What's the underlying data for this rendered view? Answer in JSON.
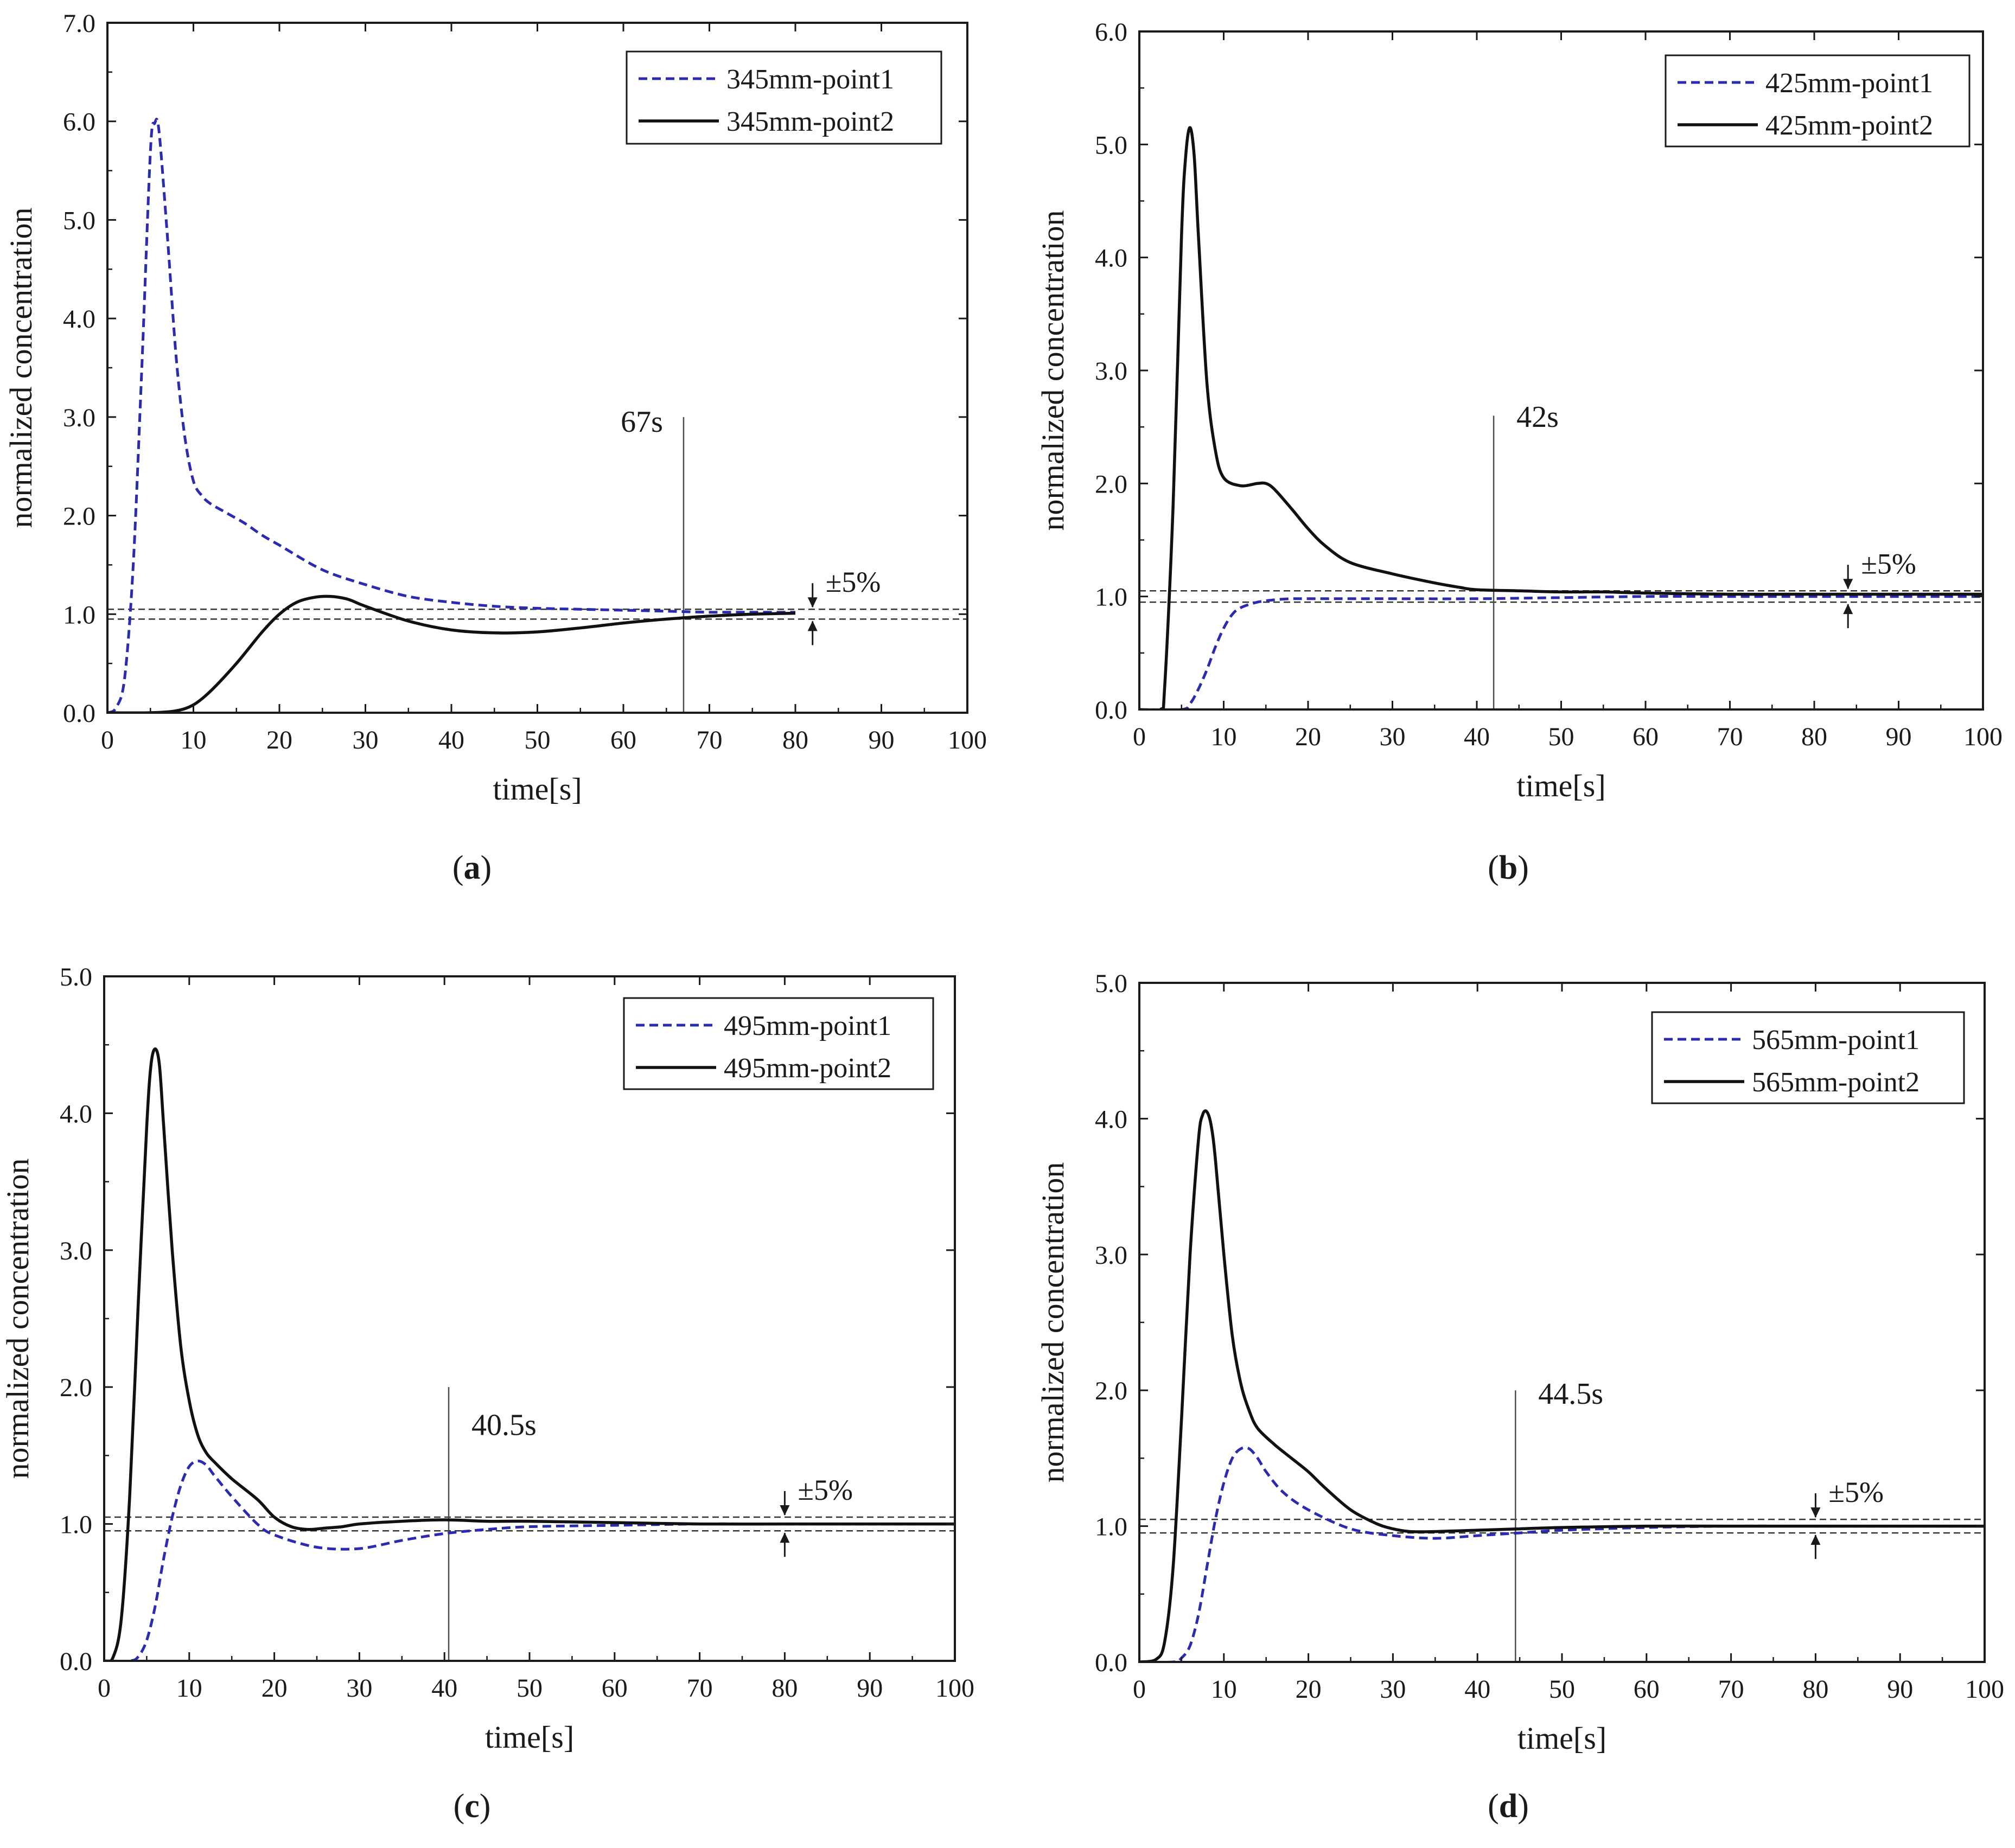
{
  "colors": {
    "series1": "#2b2bb0",
    "series2": "#111111",
    "axis": "#1a1a1a",
    "band": "#333333",
    "marker": "#4d4d4d"
  },
  "chart_data": [
    {
      "type": "line",
      "panel_label": "(a)",
      "panel_letter": "a",
      "xlabel": "time[s]",
      "ylabel": "normalized concentration",
      "xlim": [
        0,
        100
      ],
      "ylim": [
        0,
        7.0
      ],
      "xticks": [
        0,
        10,
        20,
        30,
        40,
        50,
        60,
        70,
        80,
        90,
        100
      ],
      "yticks": [
        0.0,
        1.0,
        2.0,
        3.0,
        4.0,
        5.0,
        6.0,
        7.0
      ],
      "ytick_labels": [
        "0.0",
        "1.0",
        "2.0",
        "3.0",
        "4.0",
        "5.0",
        "6.0",
        "7.0"
      ],
      "band": {
        "upper": 1.05,
        "lower": 0.95,
        "label": "±5%",
        "arrow_x": 82
      },
      "settling": {
        "x": 67,
        "label": "67s",
        "line_top": 3.0,
        "label_y": 2.85,
        "label_side": "left"
      },
      "series": [
        {
          "name": "345mm-point1",
          "style": "dashed",
          "x": [
            0,
            1,
            2,
            3,
            4,
            5,
            5.5,
            6,
            7,
            8,
            9,
            10,
            11,
            12,
            14,
            16,
            18,
            20,
            25,
            30,
            35,
            40,
            45,
            50,
            55,
            60,
            65,
            70,
            75,
            80
          ],
          "y": [
            0,
            0.05,
            0.35,
            1.5,
            3.5,
            5.7,
            5.98,
            5.9,
            4.8,
            3.6,
            2.8,
            2.35,
            2.2,
            2.12,
            2.02,
            1.92,
            1.8,
            1.7,
            1.45,
            1.3,
            1.18,
            1.12,
            1.08,
            1.06,
            1.05,
            1.04,
            1.03,
            1.02,
            1.02,
            1.02
          ]
        },
        {
          "name": "345mm-point2",
          "style": "solid",
          "x": [
            0,
            5,
            8,
            10,
            12,
            15,
            18,
            20,
            22,
            24,
            26,
            28,
            30,
            35,
            40,
            45,
            50,
            55,
            60,
            65,
            70,
            75,
            80
          ],
          "y": [
            0,
            0,
            0.02,
            0.08,
            0.22,
            0.5,
            0.82,
            1.0,
            1.12,
            1.17,
            1.18,
            1.15,
            1.08,
            0.93,
            0.84,
            0.81,
            0.82,
            0.86,
            0.91,
            0.95,
            0.98,
            1.0,
            1.01
          ]
        }
      ]
    },
    {
      "type": "line",
      "panel_label": "(b)",
      "panel_letter": "b",
      "xlabel": "time[s]",
      "ylabel": "normalized concentration",
      "xlim": [
        0,
        100
      ],
      "ylim": [
        0,
        6.0
      ],
      "xticks": [
        0,
        10,
        20,
        30,
        40,
        50,
        60,
        70,
        80,
        90,
        100
      ],
      "yticks": [
        0.0,
        1.0,
        2.0,
        3.0,
        4.0,
        5.0,
        6.0
      ],
      "ytick_labels": [
        "0.0",
        "1.0",
        "2.0",
        "3.0",
        "4.0",
        "5.0",
        "6.0"
      ],
      "band": {
        "upper": 1.05,
        "lower": 0.95,
        "label": "±5%",
        "arrow_x": 84
      },
      "settling": {
        "x": 42,
        "label": "42s",
        "line_top": 2.6,
        "label_y": 2.5,
        "label_side": "right"
      },
      "series": [
        {
          "name": "425mm-point1",
          "style": "dashed",
          "x": [
            0,
            5,
            6,
            7,
            8,
            9,
            10,
            11,
            12,
            14,
            16,
            18,
            20,
            30,
            40,
            50,
            60,
            70,
            80,
            90,
            100
          ],
          "y": [
            0,
            0,
            0.05,
            0.18,
            0.35,
            0.55,
            0.72,
            0.84,
            0.9,
            0.95,
            0.97,
            0.98,
            0.98,
            0.98,
            0.98,
            0.99,
            1.0,
            1.0,
            1.0,
            1.0,
            1.0
          ]
        },
        {
          "name": "425mm-point2",
          "style": "solid",
          "x": [
            0,
            2.5,
            3,
            4,
            5,
            5.5,
            6,
            6.5,
            7,
            8,
            9,
            10,
            12,
            14,
            15,
            16,
            18,
            20,
            22,
            25,
            30,
            35,
            38,
            40,
            45,
            50,
            55,
            60,
            70,
            80,
            90,
            100
          ],
          "y": [
            0,
            0,
            0.2,
            1.8,
            4.2,
            4.9,
            5.15,
            4.9,
            4.2,
            2.9,
            2.3,
            2.05,
            1.98,
            2.0,
            2.0,
            1.95,
            1.78,
            1.6,
            1.45,
            1.3,
            1.2,
            1.12,
            1.08,
            1.06,
            1.05,
            1.04,
            1.04,
            1.03,
            1.02,
            1.02,
            1.02,
            1.02
          ]
        }
      ]
    },
    {
      "type": "line",
      "panel_label": "(c)",
      "panel_letter": "c",
      "xlabel": "time[s]",
      "ylabel": "normalized concentration",
      "xlim": [
        0,
        100
      ],
      "ylim": [
        0,
        5.0
      ],
      "xticks": [
        0,
        10,
        20,
        30,
        40,
        50,
        60,
        70,
        80,
        90,
        100
      ],
      "yticks": [
        0.0,
        1.0,
        2.0,
        3.0,
        4.0,
        5.0
      ],
      "ytick_labels": [
        "0.0",
        "1.0",
        "2.0",
        "3.0",
        "4.0",
        "5.0"
      ],
      "band": {
        "upper": 1.05,
        "lower": 0.95,
        "label": "±5%",
        "arrow_x": 80
      },
      "settling": {
        "x": 40.5,
        "label": "40.5s",
        "line_top": 2.0,
        "label_y": 1.65,
        "label_side": "right"
      },
      "series": [
        {
          "name": "495mm-point1",
          "style": "dashed",
          "x": [
            0,
            3,
            4,
            5,
            6,
            7,
            8,
            9,
            10,
            11,
            12,
            13,
            15,
            18,
            20,
            25,
            30,
            35,
            40,
            45,
            50,
            60,
            70,
            80,
            90,
            100
          ],
          "y": [
            0,
            0,
            0.03,
            0.15,
            0.4,
            0.75,
            1.05,
            1.28,
            1.42,
            1.46,
            1.43,
            1.35,
            1.2,
            1.0,
            0.92,
            0.83,
            0.82,
            0.88,
            0.93,
            0.96,
            0.98,
            0.99,
            1.0,
            1.0,
            1.0,
            1.0
          ]
        },
        {
          "name": "495mm-point2",
          "style": "solid",
          "x": [
            0,
            1,
            2,
            3,
            4,
            5,
            5.5,
            6,
            6.5,
            7,
            8,
            9,
            10,
            11,
            12,
            13,
            15,
            18,
            20,
            22,
            24,
            26,
            28,
            30,
            35,
            40,
            45,
            50,
            60,
            70,
            80,
            90,
            100
          ],
          "y": [
            0,
            0.02,
            0.3,
            1.2,
            2.6,
            3.9,
            4.35,
            4.47,
            4.35,
            3.9,
            3.0,
            2.3,
            1.9,
            1.65,
            1.52,
            1.45,
            1.33,
            1.18,
            1.05,
            0.98,
            0.96,
            0.97,
            0.98,
            1.0,
            1.02,
            1.03,
            1.02,
            1.02,
            1.01,
            1.0,
            1.0,
            1.0,
            1.0
          ]
        }
      ]
    },
    {
      "type": "line",
      "panel_label": "(d)",
      "panel_letter": "d",
      "xlabel": "time[s]",
      "ylabel": "normalized concentration",
      "xlim": [
        0,
        100
      ],
      "ylim": [
        0,
        5.0
      ],
      "xticks": [
        0,
        10,
        20,
        30,
        40,
        50,
        60,
        70,
        80,
        90,
        100
      ],
      "yticks": [
        0.0,
        1.0,
        2.0,
        3.0,
        4.0,
        5.0
      ],
      "ytick_labels": [
        "0.0",
        "1.0",
        "2.0",
        "3.0",
        "4.0",
        "5.0"
      ],
      "band": {
        "upper": 1.05,
        "lower": 0.95,
        "label": "±5%",
        "arrow_x": 80
      },
      "settling": {
        "x": 44.5,
        "label": "44.5s",
        "line_top": 2.0,
        "label_y": 1.9,
        "label_side": "right"
      },
      "series": [
        {
          "name": "565mm-point1",
          "style": "dashed",
          "x": [
            0,
            4,
            5,
            6,
            7,
            8,
            9,
            10,
            11,
            12,
            13,
            14,
            15,
            17,
            20,
            25,
            30,
            35,
            40,
            45,
            50,
            60,
            70,
            80,
            90,
            100
          ],
          "y": [
            0,
            0,
            0.03,
            0.12,
            0.35,
            0.7,
            1.05,
            1.32,
            1.5,
            1.57,
            1.57,
            1.5,
            1.4,
            1.25,
            1.12,
            0.98,
            0.93,
            0.91,
            0.93,
            0.95,
            0.97,
            0.99,
            1.0,
            1.0,
            1.0,
            1.0
          ]
        },
        {
          "name": "565mm-point2",
          "style": "solid",
          "x": [
            0,
            2,
            3,
            4,
            5,
            6,
            7,
            7.5,
            8,
            8.5,
            9,
            10,
            11,
            12,
            13,
            14,
            16,
            18,
            20,
            22,
            25,
            28,
            30,
            32,
            35,
            40,
            45,
            50,
            60,
            70,
            80,
            90,
            100
          ],
          "y": [
            0,
            0.02,
            0.15,
            0.7,
            1.8,
            3.0,
            3.85,
            4.03,
            4.05,
            3.95,
            3.7,
            3.0,
            2.4,
            2.05,
            1.85,
            1.72,
            1.6,
            1.5,
            1.4,
            1.28,
            1.12,
            1.02,
            0.98,
            0.96,
            0.96,
            0.97,
            0.98,
            0.99,
            1.0,
            1.0,
            1.0,
            1.0,
            1.0
          ]
        }
      ]
    }
  ]
}
